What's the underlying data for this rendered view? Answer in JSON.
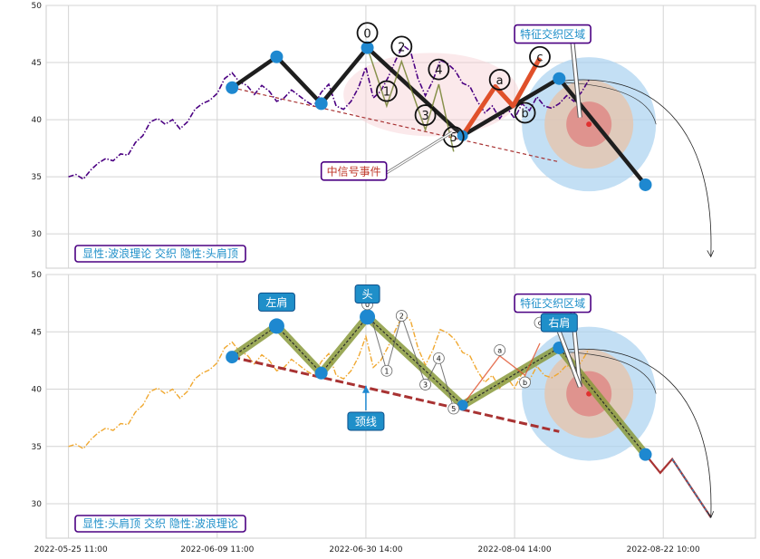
{
  "chart_data": [
    {
      "type": "line",
      "panel": "top",
      "ylim": [
        27,
        50
      ],
      "yticks": [
        30,
        35,
        40,
        45,
        50
      ],
      "grid": true,
      "x_labels": [
        "2022-05-25 11:00",
        "2022-06-09 11:00",
        "2022-06-30 14:00",
        "2022-08-04 14:00",
        "2022-08-22 10:00"
      ],
      "price_series": {
        "style": "dash-dot",
        "color": "#4b0082",
        "values": [
          35.0,
          35.2,
          34.8,
          35.6,
          36.2,
          36.6,
          36.4,
          37.0,
          36.9,
          38.0,
          38.6,
          39.8,
          40.1,
          39.6,
          40.0,
          39.2,
          39.8,
          40.9,
          41.4,
          41.7,
          42.3,
          43.6,
          44.1,
          43.3,
          43.0,
          42.2,
          43.0,
          42.5,
          41.6,
          41.9,
          42.6,
          42.1,
          41.6,
          41.2,
          42.4,
          43.1,
          41.2,
          40.9,
          41.6,
          42.8,
          44.6,
          41.9,
          42.5,
          43.7,
          45.2,
          46.5,
          46.0,
          43.6,
          42.1,
          43.4,
          45.2,
          44.9,
          44.3,
          43.2,
          42.9,
          41.6,
          40.6,
          41.2,
          40.1,
          41.0,
          40.1,
          41.4,
          40.8,
          42.0,
          41.2,
          41.0,
          41.4,
          42.1,
          41.6,
          42.4,
          43.5
        ]
      },
      "pattern_line": {
        "label": "head-shoulders",
        "points": [
          [
            11,
            42.8
          ],
          [
            14,
            45.5
          ],
          [
            17,
            41.4
          ],
          [
            20.1,
            46.3
          ],
          [
            26.5,
            38.6
          ],
          [
            33,
            43.6
          ],
          [
            38.8,
            34.3
          ]
        ]
      },
      "wave_pivots": [
        {
          "label": "0",
          "x": 20.1,
          "y": 47.6
        },
        {
          "label": "1",
          "x": 21.4,
          "y": 42.5
        },
        {
          "label": "2",
          "x": 22.4,
          "y": 46.4
        },
        {
          "label": "3",
          "x": 24.0,
          "y": 40.4
        },
        {
          "label": "4",
          "x": 24.9,
          "y": 44.4
        },
        {
          "label": "5",
          "x": 25.9,
          "y": 38.5
        },
        {
          "label": "a",
          "x": 29.0,
          "y": 43.5
        },
        {
          "label": "b",
          "x": 30.7,
          "y": 40.6
        },
        {
          "label": "c",
          "x": 31.7,
          "y": 45.5
        }
      ],
      "abc_line": [
        [
          26.5,
          38.6
        ],
        [
          28.7,
          42.9
        ],
        [
          29.9,
          41.2
        ],
        [
          31.7,
          45.4
        ]
      ],
      "neckline": [
        [
          11,
          42.8
        ],
        [
          33,
          36.3
        ]
      ],
      "annotations": [
        {
          "text": "中信号事件",
          "color": "#c0392b",
          "box_x": 17.0,
          "box_y": 35.5
        },
        {
          "text": "特征交织区域",
          "color": "#1f8fc9",
          "box_x": 30.0,
          "box_y": 47.5
        }
      ],
      "target": {
        "x": 35.0,
        "y": 39.6
      },
      "footer_label": "显性:波浪理论 交织 隐性:头肩顶"
    },
    {
      "type": "line",
      "panel": "bottom",
      "ylim": [
        27,
        50
      ],
      "yticks": [
        30,
        35,
        40,
        45,
        50
      ],
      "grid": true,
      "x_labels": [
        "2022-05-25 11:00",
        "2022-06-09 11:00",
        "2022-06-30 14:00",
        "2022-08-04 14:00",
        "2022-08-22 10:00"
      ],
      "price_series": {
        "style": "dash-dot",
        "color": "#f0a830",
        "values": [
          35.0,
          35.2,
          34.8,
          35.6,
          36.2,
          36.6,
          36.4,
          37.0,
          36.9,
          38.0,
          38.6,
          39.8,
          40.1,
          39.6,
          40.0,
          39.2,
          39.8,
          40.9,
          41.4,
          41.7,
          42.3,
          43.6,
          44.1,
          43.3,
          43.0,
          42.2,
          43.0,
          42.5,
          41.6,
          41.9,
          42.6,
          42.1,
          41.6,
          41.2,
          42.4,
          43.1,
          41.2,
          40.9,
          41.6,
          42.8,
          44.6,
          41.9,
          42.5,
          43.7,
          45.2,
          46.5,
          46.0,
          43.6,
          42.1,
          43.4,
          45.2,
          44.9,
          44.3,
          43.2,
          42.9,
          41.6,
          40.6,
          41.2,
          40.1,
          41.0,
          40.1,
          41.4,
          40.8,
          42.0,
          41.2,
          41.0,
          41.4,
          42.1,
          41.6,
          42.4,
          43.5
        ]
      },
      "pattern_line": {
        "label": "head-shoulders",
        "points": [
          [
            11,
            42.8
          ],
          [
            14,
            45.5
          ],
          [
            17,
            41.4
          ],
          [
            20.1,
            46.3
          ],
          [
            26.5,
            38.6
          ],
          [
            33,
            43.6
          ],
          [
            38.8,
            34.3
          ]
        ]
      },
      "extension_line": [
        [
          38.8,
          34.3
        ],
        [
          39.8,
          32.7
        ],
        [
          40.6,
          33.9
        ],
        [
          43.2,
          28.8
        ]
      ],
      "shoulder_labels": [
        {
          "text": "左肩",
          "x": 14.0,
          "y": 47.6
        },
        {
          "text": "头",
          "x": 20.1,
          "y": 48.3
        },
        {
          "text": "右肩",
          "x": 33.0,
          "y": 45.8
        },
        {
          "text": "颈线",
          "x": 20.0,
          "y": 37.2
        }
      ],
      "wave_pivots": [
        {
          "label": "0",
          "x": 20.1,
          "y": 47.4
        },
        {
          "label": "1",
          "x": 21.4,
          "y": 41.6
        },
        {
          "label": "2",
          "x": 22.4,
          "y": 46.4
        },
        {
          "label": "3",
          "x": 24.0,
          "y": 40.4
        },
        {
          "label": "4",
          "x": 24.9,
          "y": 42.7
        },
        {
          "label": "5",
          "x": 25.9,
          "y": 38.3
        },
        {
          "label": "a",
          "x": 29.0,
          "y": 43.4
        },
        {
          "label": "b",
          "x": 30.7,
          "y": 40.6
        },
        {
          "label": "c",
          "x": 31.7,
          "y": 45.8
        }
      ],
      "neckline": [
        [
          11,
          42.8
        ],
        [
          33,
          36.3
        ]
      ],
      "annotations": [
        {
          "text": "特征交织区域",
          "color": "#1f8fc9",
          "box_x": 30.0,
          "box_y": 47.5
        }
      ],
      "target": {
        "x": 35.0,
        "y": 39.6
      },
      "footer_label": "显性:头肩顶 交织 隐性:波浪理论"
    }
  ],
  "colors": {
    "purple_border": "#4b0082",
    "label_blue": "#1f8fc9",
    "wave_red": "#e0502a",
    "pattern_green": "#8a9a3c",
    "node_blue": "#1e88d0",
    "neck_red": "#a83232"
  }
}
